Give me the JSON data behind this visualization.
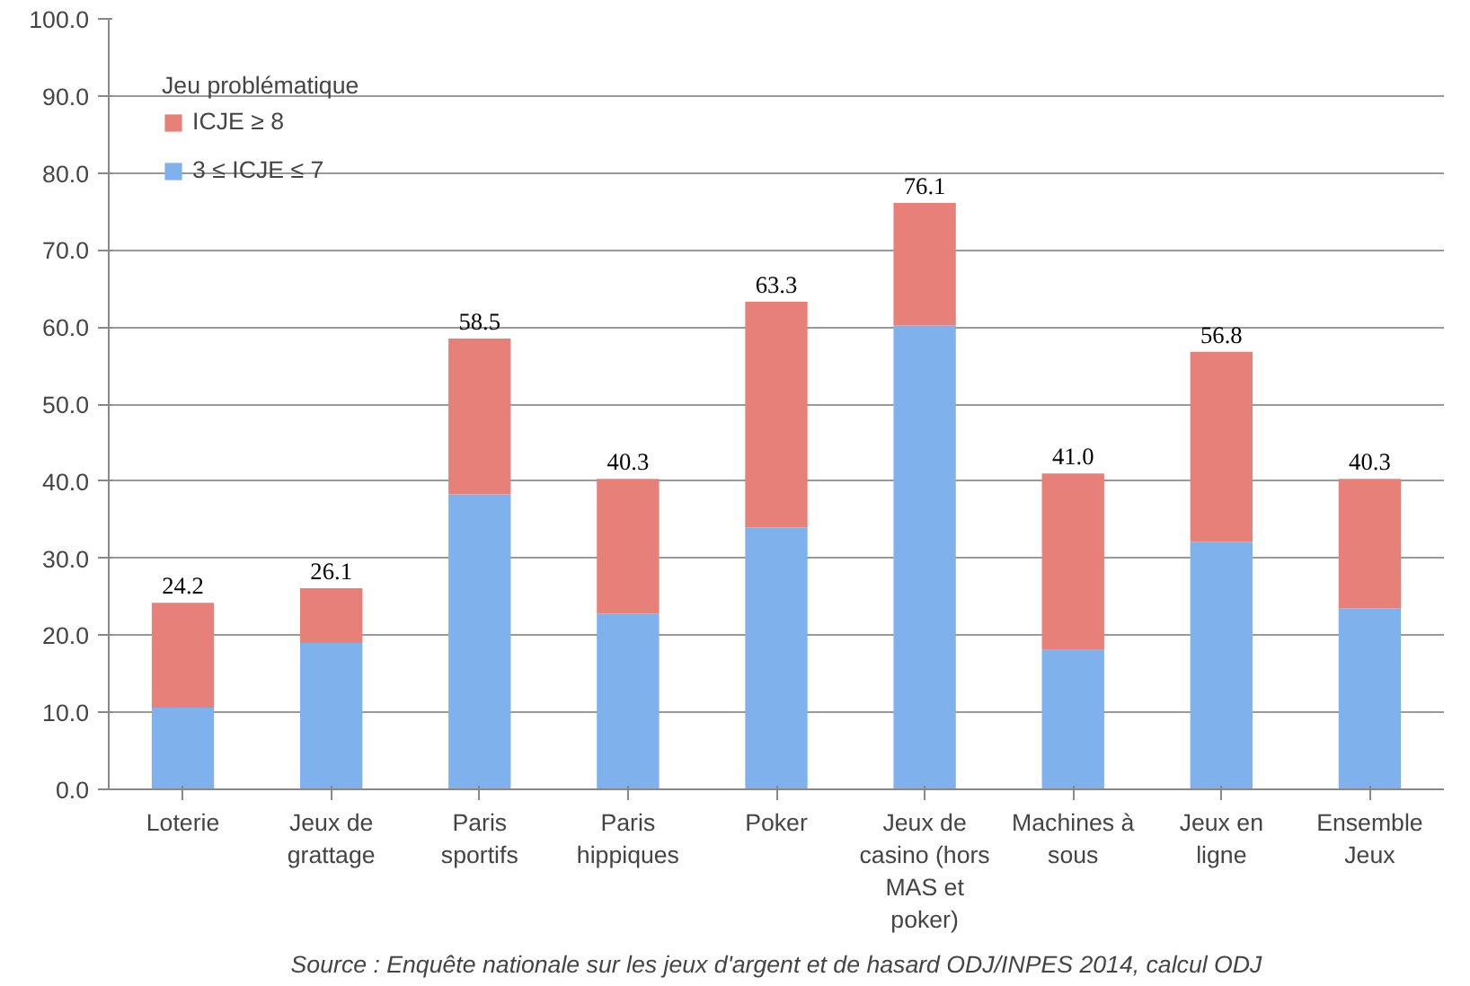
{
  "chart_data": {
    "type": "bar",
    "stacked": true,
    "categories": [
      "Loterie",
      "Jeux de grattage",
      "Paris sportifs",
      "Paris hippiques",
      "Poker",
      "Jeux de casino (hors MAS et poker)",
      "Machines à sous",
      "Jeux en ligne",
      "Ensemble Jeux"
    ],
    "series": [
      {
        "name": "3 ≤ ICJE ≤ 7",
        "color": "#7fb2ec",
        "values": [
          10.6,
          19.0,
          38.3,
          22.8,
          34.0,
          60.2,
          18.1,
          32.1,
          23.5
        ]
      },
      {
        "name": "ICJE ≥ 8",
        "color": "#e8807a",
        "values": [
          13.6,
          7.1,
          20.2,
          17.5,
          29.3,
          15.9,
          22.9,
          24.7,
          16.8
        ]
      }
    ],
    "totals": [
      "24.2",
      "26.1",
      "58.5",
      "40.3",
      "63.3",
      "76.1",
      "41.0",
      "56.8",
      "40.3"
    ],
    "legend_title": "Jeu problématique",
    "legend": "top left",
    "ylim": [
      0,
      100
    ],
    "yticks": [
      {
        "value": 0,
        "label": "0.0"
      },
      {
        "value": 10,
        "label": "10.0"
      },
      {
        "value": 20,
        "label": "20.0"
      },
      {
        "value": 30,
        "label": "30.0"
      },
      {
        "value": 40,
        "label": "40.0"
      },
      {
        "value": 50,
        "label": "50.0"
      },
      {
        "value": 60,
        "label": "60.0"
      },
      {
        "value": 70,
        "label": "70.0"
      },
      {
        "value": 80,
        "label": "80.0"
      },
      {
        "value": 90,
        "label": "90.0"
      },
      {
        "value": 100,
        "label": "100.0"
      }
    ],
    "grid": "y",
    "annotations": [
      "Source : Enquête nationale sur les jeux d'argent et de hasard ODJ/INPES 2014, calcul ODJ"
    ]
  }
}
